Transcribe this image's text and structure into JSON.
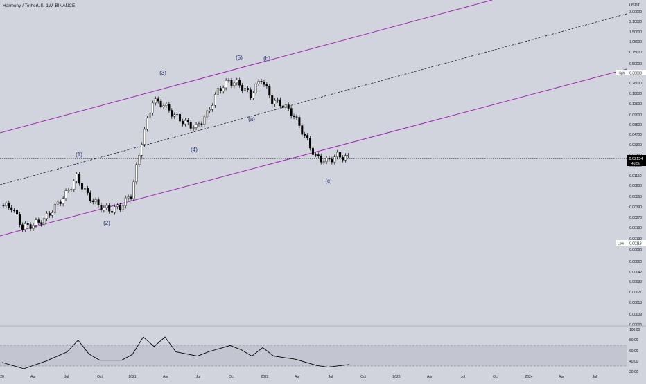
{
  "header": {
    "symbol_title": "Harmony / TetherUS, 1W, BINANCE"
  },
  "price_axis": {
    "currency_label": "USDT",
    "ticks": [
      "3.00000",
      "2.10000",
      "1.50000",
      "1.05000",
      "0.75000",
      "0.50000",
      "0.26000",
      "0.18000",
      "0.13000",
      "0.09000",
      "0.06500",
      "0.04700",
      "0.03300",
      "0.02300",
      "0.01600",
      "0.01150",
      "0.00800",
      "0.00550",
      "0.00390",
      "0.00270",
      "0.00190",
      "0.00130",
      "0.00090",
      "0.00060",
      "0.00042",
      "0.00030",
      "0.00021",
      "0.00013",
      "0.00009",
      "0.00006"
    ],
    "high_label": "High",
    "high_value": "0.38000",
    "low_label": "Low",
    "low_value": "0.00118",
    "last_price": "0.02134",
    "countdown": "4d 5h"
  },
  "time_axis": {
    "ticks": [
      "20",
      "Apr",
      "Jul",
      "Oct",
      "2021",
      "Apr",
      "Jul",
      "Oct",
      "2022",
      "Apr",
      "Jul",
      "Oct",
      "2023",
      "Apr",
      "Jul",
      "Oct",
      "2024",
      "Apr",
      "Jul"
    ]
  },
  "indicator_axis": {
    "ticks": [
      "100.00",
      "80.00",
      "60.00",
      "40.00",
      "20.00"
    ]
  },
  "wave_labels": [
    "(1)",
    "(2)",
    "(3)",
    "(4)",
    "(5)",
    "(a)",
    "(b)",
    "(c)"
  ],
  "colors": {
    "background": "#d1d4dc",
    "channel": "#9c27b0",
    "candle_up": "#ffffff",
    "candle_down": "#000000",
    "indicator_line": "#000000",
    "indicator_band": "#c3c6d0"
  },
  "chart_data": {
    "type": "candlestick",
    "title": "Harmony / TetherUS, 1W, BINANCE",
    "y_scale": "log",
    "ylim": [
      6e-05,
      3.0
    ],
    "xlim": [
      "2020-01",
      "2024-09"
    ],
    "last_price": 0.02134,
    "high": 0.38,
    "low": 0.00118,
    "price_series": [
      {
        "date": "2020-01",
        "close": 0.0042
      },
      {
        "date": "2020-02",
        "close": 0.004
      },
      {
        "date": "2020-03",
        "close": 0.002
      },
      {
        "date": "2020-04",
        "close": 0.0022
      },
      {
        "date": "2020-05",
        "close": 0.0026
      },
      {
        "date": "2020-06",
        "close": 0.004
      },
      {
        "date": "2020-07",
        "close": 0.0062
      },
      {
        "date": "2020-08",
        "close": 0.011
      },
      {
        "date": "2020-09",
        "close": 0.006
      },
      {
        "date": "2020-10",
        "close": 0.0042
      },
      {
        "date": "2020-11",
        "close": 0.0036
      },
      {
        "date": "2020-12",
        "close": 0.004
      },
      {
        "date": "2021-01",
        "close": 0.006
      },
      {
        "date": "2021-02",
        "close": 0.038
      },
      {
        "date": "2021-03",
        "close": 0.15
      },
      {
        "date": "2021-04",
        "close": 0.13
      },
      {
        "date": "2021-05",
        "close": 0.09
      },
      {
        "date": "2021-06",
        "close": 0.07
      },
      {
        "date": "2021-07",
        "close": 0.06
      },
      {
        "date": "2021-08",
        "close": 0.095
      },
      {
        "date": "2021-09",
        "close": 0.21
      },
      {
        "date": "2021-10",
        "close": 0.29
      },
      {
        "date": "2021-11",
        "close": 0.26
      },
      {
        "date": "2021-12",
        "close": 0.18
      },
      {
        "date": "2022-01",
        "close": 0.32
      },
      {
        "date": "2022-02",
        "close": 0.15
      },
      {
        "date": "2022-03",
        "close": 0.13
      },
      {
        "date": "2022-04",
        "close": 0.09
      },
      {
        "date": "2022-05",
        "close": 0.045
      },
      {
        "date": "2022-06",
        "close": 0.022
      },
      {
        "date": "2022-07",
        "close": 0.019
      },
      {
        "date": "2022-08",
        "close": 0.023
      },
      {
        "date": "2022-09",
        "close": 0.02134
      }
    ],
    "indicator": {
      "ylim": [
        20,
        100
      ],
      "levels": [
        70,
        30
      ],
      "values": [
        {
          "date": "2020-01",
          "value": 40
        },
        {
          "date": "2020-03",
          "value": 28
        },
        {
          "date": "2020-05",
          "value": 42
        },
        {
          "date": "2020-07",
          "value": 60
        },
        {
          "date": "2020-08",
          "value": 82
        },
        {
          "date": "2020-09",
          "value": 56
        },
        {
          "date": "2020-10",
          "value": 44
        },
        {
          "date": "2020-12",
          "value": 44
        },
        {
          "date": "2021-01",
          "value": 55
        },
        {
          "date": "2021-02",
          "value": 88
        },
        {
          "date": "2021-03",
          "value": 70
        },
        {
          "date": "2021-04",
          "value": 88
        },
        {
          "date": "2021-05",
          "value": 60
        },
        {
          "date": "2021-07",
          "value": 52
        },
        {
          "date": "2021-08",
          "value": 60
        },
        {
          "date": "2021-10",
          "value": 72
        },
        {
          "date": "2021-11",
          "value": 64
        },
        {
          "date": "2021-12",
          "value": 52
        },
        {
          "date": "2022-01",
          "value": 68
        },
        {
          "date": "2022-02",
          "value": 52
        },
        {
          "date": "2022-04",
          "value": 46
        },
        {
          "date": "2022-06",
          "value": 34
        },
        {
          "date": "2022-07",
          "value": 31
        },
        {
          "date": "2022-09",
          "value": 36
        }
      ]
    }
  }
}
